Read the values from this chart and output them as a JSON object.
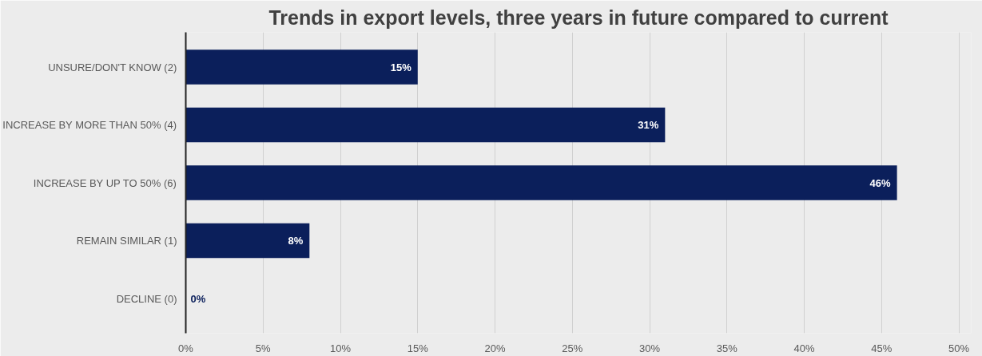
{
  "chart_data": {
    "type": "bar",
    "orientation": "horizontal",
    "title": "Trends in export levels, three years in future compared to current",
    "categories": [
      "UNSURE/DON'T KNOW (2)",
      "INCREASE BY MORE THAN 50% (4)",
      "INCREASE BY UP TO 50% (6)",
      "REMAIN SIMILAR (1)",
      "DECLINE (0)"
    ],
    "values": [
      15,
      31,
      46,
      8,
      0
    ],
    "value_labels": [
      "15%",
      "31%",
      "46%",
      "8%",
      "0%"
    ],
    "color": "#0b1f5b",
    "xlim": [
      0,
      50.8
    ],
    "xticks": [
      {
        "value": 0,
        "label": "0%"
      },
      {
        "value": 5,
        "label": "5%"
      },
      {
        "value": 10,
        "label": "10%"
      },
      {
        "value": 15,
        "label": "15%"
      },
      {
        "value": 20,
        "label": "20%"
      },
      {
        "value": 25,
        "label": "25%"
      },
      {
        "value": 30,
        "label": "30%"
      },
      {
        "value": 35,
        "label": "35%"
      },
      {
        "value": 40,
        "label": "40%"
      },
      {
        "value": 45,
        "label": "45%"
      },
      {
        "value": 50,
        "label": "50%"
      }
    ],
    "grid": "x"
  }
}
